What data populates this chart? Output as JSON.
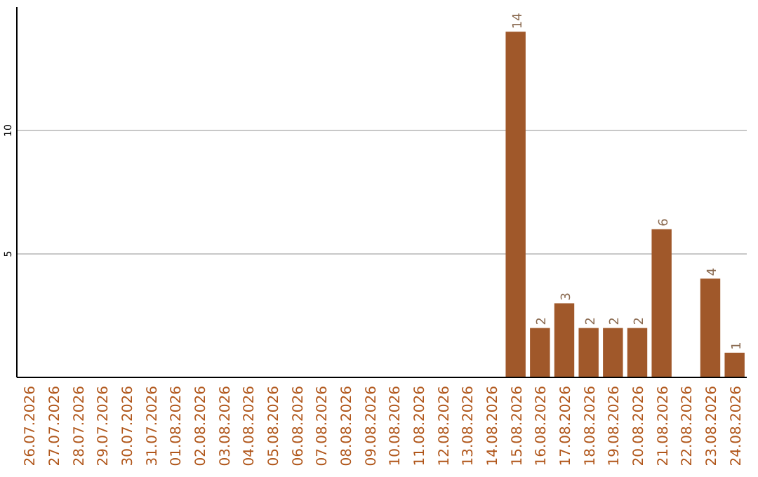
{
  "chart_data": {
    "type": "bar",
    "categories": [
      "26.07.2026",
      "27.07.2026",
      "28.07.2026",
      "29.07.2026",
      "30.07.2026",
      "31.07.2026",
      "01.08.2026",
      "02.08.2026",
      "03.08.2026",
      "04.08.2026",
      "05.08.2026",
      "06.08.2026",
      "07.08.2026",
      "08.08.2026",
      "09.08.2026",
      "10.08.2026",
      "11.08.2026",
      "12.08.2026",
      "13.08.2026",
      "14.08.2026",
      "15.08.2026",
      "16.08.2026",
      "17.08.2026",
      "18.08.2026",
      "19.08.2026",
      "20.08.2026",
      "21.08.2026",
      "22.08.2026",
      "23.08.2026",
      "24.08.2026"
    ],
    "values": [
      0,
      0,
      0,
      0,
      0,
      0,
      0,
      0,
      0,
      0,
      0,
      0,
      0,
      0,
      0,
      0,
      0,
      0,
      0,
      0,
      14,
      2,
      3,
      2,
      2,
      2,
      6,
      0,
      4,
      1
    ],
    "value_labels": [
      null,
      null,
      null,
      null,
      null,
      null,
      null,
      null,
      null,
      null,
      null,
      null,
      null,
      null,
      null,
      null,
      null,
      null,
      null,
      null,
      "14",
      "2",
      "3",
      "2",
      "2",
      "2",
      "6",
      null,
      "4",
      "1"
    ],
    "color": "#a0582a",
    "ylim": [
      0,
      15
    ],
    "yticks": [
      5,
      10
    ],
    "grid": "y"
  }
}
